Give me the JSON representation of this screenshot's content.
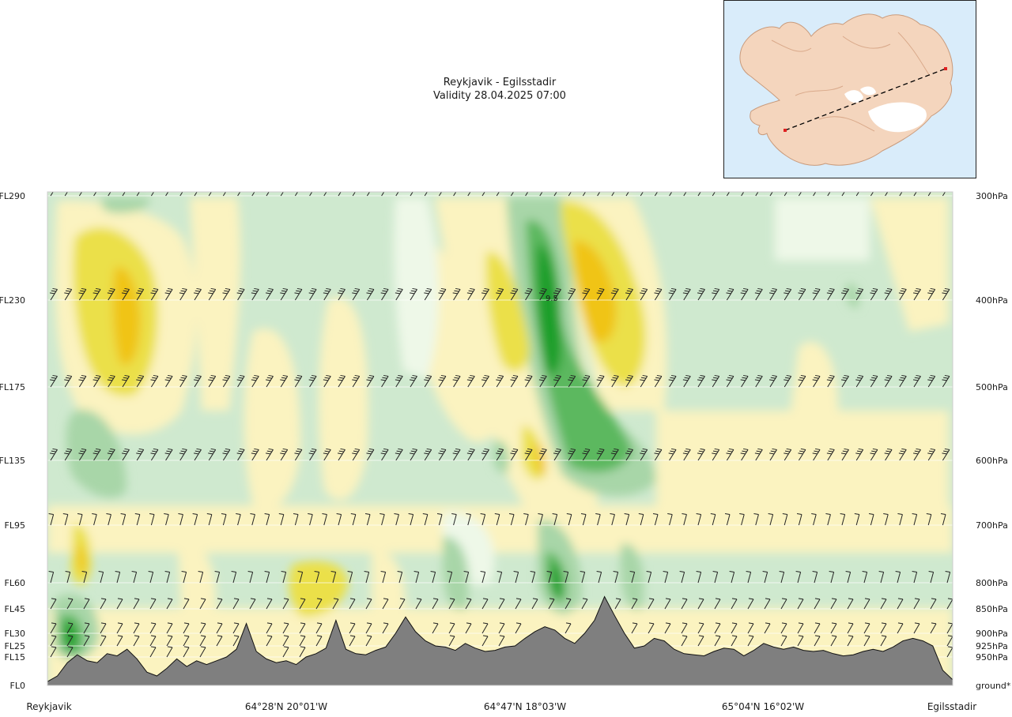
{
  "header": {
    "route": "Reykjavik - Egilsstadir",
    "validity": "Validity 28.04.2025 07:00"
  },
  "colors": {
    "level_strong_green": "#1f9f2a",
    "level_green": "#5cb85f",
    "level_mid_green": "#a8d6a8",
    "level_light_green": "#cfe9cf",
    "level_pale_green": "#eef8e8",
    "level_pale_yellow": "#fbf3c0",
    "level_yellow": "#ebe04a",
    "level_orange": "#f0c419",
    "terrain": "#7f7f7f"
  },
  "chart_data": {
    "type": "heatmap",
    "title": "Reykjavik - Egilsstadir",
    "subtitle": "Validity 28.04.2025 07:00",
    "left_axis_labels": [
      "FL290",
      "FL230",
      "FL175",
      "FL135",
      "FL95",
      "FL60",
      "FL45",
      "FL30",
      "FL25",
      "FL15",
      "FL0"
    ],
    "right_axis_labels": [
      "300hPa",
      "400hPa",
      "500hPa",
      "600hPa",
      "700hPa",
      "800hPa",
      "850hPa",
      "900hPa",
      "925hPa",
      "950hPa",
      "ground*"
    ],
    "levels": [
      {
        "fl": 290,
        "fl_label": "FL290",
        "hpa_label": "300hPa"
      },
      {
        "fl": 230,
        "fl_label": "FL230",
        "hpa_label": "400hPa"
      },
      {
        "fl": 175,
        "fl_label": "FL175",
        "hpa_label": "500hPa"
      },
      {
        "fl": 135,
        "fl_label": "FL135",
        "hpa_label": "600hPa"
      },
      {
        "fl": 95,
        "fl_label": "FL95",
        "hpa_label": "700hPa"
      },
      {
        "fl": 60,
        "fl_label": "FL60",
        "hpa_label": "800hPa"
      },
      {
        "fl": 45,
        "fl_label": "FL45",
        "hpa_label": "850hPa"
      },
      {
        "fl": 30,
        "fl_label": "FL30",
        "hpa_label": "900hPa"
      },
      {
        "fl": 25,
        "fl_label": "FL25",
        "hpa_label": "925hPa"
      },
      {
        "fl": 15,
        "fl_label": "FL15",
        "hpa_label": "950hPa"
      },
      {
        "fl": 0,
        "fl_label": "FL0",
        "hpa_label": "ground*"
      }
    ],
    "x_tick_labels": [
      "Reykjavik",
      "64°28'N 20°01'W",
      "64°47'N 18°03'W",
      "65°04'N 16°02'W",
      "Egilsstadir"
    ],
    "x_range": [
      0,
      1
    ],
    "contour_label": "9.5",
    "terrain_profile_fl": [
      2,
      5,
      12,
      17,
      13,
      12,
      18,
      16,
      22,
      14,
      7,
      5,
      9,
      14,
      10,
      13,
      11,
      13,
      15,
      22,
      36,
      20,
      14,
      12,
      13,
      11,
      15,
      18,
      23,
      38,
      22,
      18,
      17,
      21,
      24,
      30,
      40,
      31,
      27,
      25,
      24,
      21,
      26,
      23,
      20,
      21,
      24,
      25,
      28,
      31,
      34,
      32,
      28,
      26,
      30,
      38,
      52,
      41,
      30,
      23,
      25,
      28,
      27,
      22,
      18,
      17,
      16,
      20,
      23,
      22,
      16,
      21,
      26,
      24,
      22,
      24,
      21,
      20,
      21,
      18,
      16,
      17,
      20,
      22,
      20,
      24,
      27,
      28,
      27,
      25,
      8,
      3
    ]
  }
}
